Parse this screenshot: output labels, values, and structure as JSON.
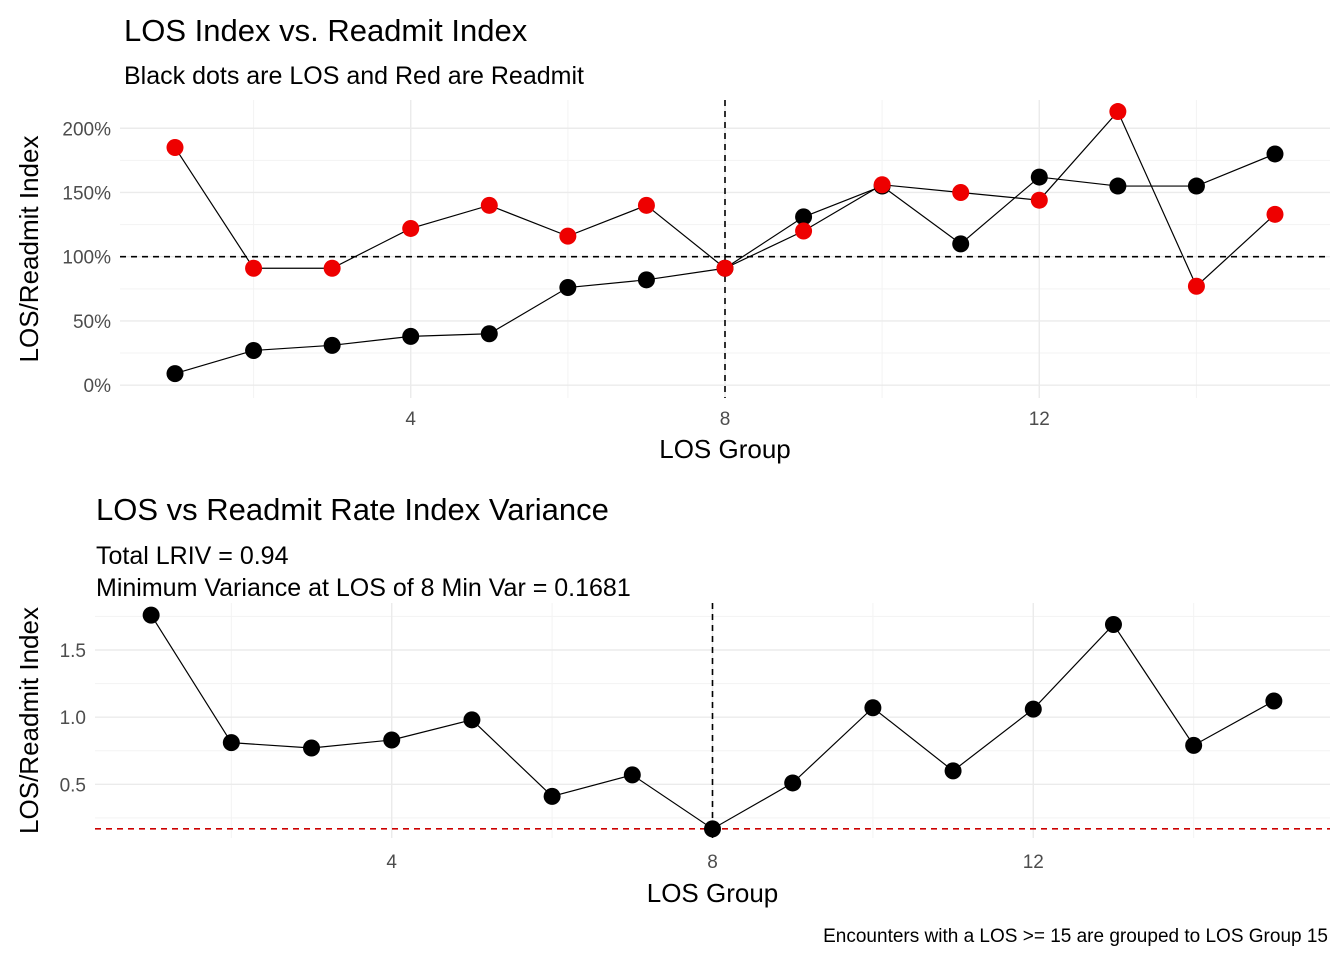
{
  "chart_data": [
    {
      "type": "line",
      "title": "LOS Index vs. Readmit Index",
      "subtitle_lines": [
        "Black dots are LOS and Red are Readmit"
      ],
      "xlabel": "LOS Group",
      "ylabel": "LOS/Readmit Index",
      "xlim": [
        0.3,
        15.7
      ],
      "ylim": [
        -0.1,
        2.22
      ],
      "x_ticks": [
        4,
        8,
        12
      ],
      "x_minor": [
        2,
        6,
        10,
        14
      ],
      "y_ticks": [
        0,
        0.5,
        1.0,
        1.5,
        2.0
      ],
      "y_tick_labels": [
        "0%",
        "50%",
        "100%",
        "150%",
        "200%"
      ],
      "y_minor": [
        0.25,
        0.75,
        1.25,
        1.75
      ],
      "series": [
        {
          "color": "#000000",
          "x": [
            1,
            2,
            3,
            4,
            5,
            6,
            7,
            8,
            9,
            10,
            11,
            12,
            13,
            14,
            15
          ],
          "values": [
            0.09,
            0.27,
            0.31,
            0.38,
            0.4,
            0.76,
            0.82,
            0.91,
            1.31,
            1.55,
            1.1,
            1.62,
            1.55,
            1.55,
            1.8
          ]
        },
        {
          "color": "#ee0000",
          "x": [
            1,
            2,
            3,
            4,
            5,
            6,
            7,
            8,
            9,
            10,
            11,
            12,
            13,
            14,
            15
          ],
          "values": [
            1.85,
            0.91,
            0.91,
            1.22,
            1.4,
            1.16,
            1.4,
            0.91,
            1.2,
            1.56,
            1.5,
            1.44,
            2.13,
            0.77,
            1.33
          ]
        }
      ],
      "vline_x": 8,
      "hline_y": 1.0
    },
    {
      "type": "line",
      "title": "LOS vs Readmit Rate Index Variance",
      "subtitle_lines": [
        "Total LRIV = 0.94",
        "Minimum Variance at LOS of 8 Min Var = 0.1681"
      ],
      "xlabel": "LOS Group",
      "ylabel": "LOS/Readmit Index",
      "xlim": [
        0.3,
        15.7
      ],
      "ylim": [
        0.1,
        1.85
      ],
      "x_ticks": [
        4,
        8,
        12
      ],
      "x_minor": [
        2,
        6,
        10,
        14
      ],
      "y_ticks": [
        0.5,
        1.0,
        1.5
      ],
      "y_tick_labels": [
        "0.5",
        "1.0",
        "1.5"
      ],
      "y_minor": [
        0.25,
        0.75,
        1.25,
        1.75
      ],
      "series": [
        {
          "color": "#000000",
          "x": [
            1,
            2,
            3,
            4,
            5,
            6,
            7,
            8,
            9,
            10,
            11,
            12,
            13,
            14,
            15
          ],
          "values": [
            1.76,
            0.81,
            0.77,
            0.83,
            0.98,
            0.41,
            0.57,
            0.1681,
            0.51,
            1.07,
            0.6,
            1.06,
            1.69,
            0.79,
            1.12
          ]
        }
      ],
      "vline_x": 8,
      "hline_y": 0.1681,
      "hline_color": "#cc0000",
      "caption": "Encounters with a LOS >= 15 are grouped to LOS Group 15"
    }
  ]
}
